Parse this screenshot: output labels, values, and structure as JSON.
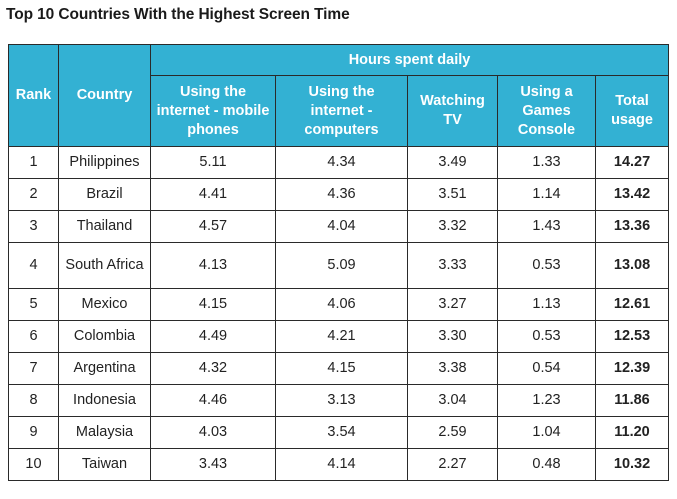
{
  "title": "Top 10 Countries With the Highest Screen Time",
  "table": {
    "group_header": "Hours spent daily",
    "columns": {
      "rank": "Rank",
      "country": "Country",
      "mobile": "Using the internet - mobile phones",
      "computers": "Using the internet - computers",
      "tv": "Watching TV",
      "console": "Using a Games Console",
      "total": "Total usage"
    },
    "rows": [
      {
        "rank": "1",
        "country": "Philippines",
        "mobile": "5.11",
        "computers": "4.34",
        "tv": "3.49",
        "console": "1.33",
        "total": "14.27"
      },
      {
        "rank": "2",
        "country": "Brazil",
        "mobile": "4.41",
        "computers": "4.36",
        "tv": "3.51",
        "console": "1.14",
        "total": "13.42"
      },
      {
        "rank": "3",
        "country": "Thailand",
        "mobile": "4.57",
        "computers": "4.04",
        "tv": "3.32",
        "console": "1.43",
        "total": "13.36"
      },
      {
        "rank": "4",
        "country": "South Africa",
        "mobile": "4.13",
        "computers": "5.09",
        "tv": "3.33",
        "console": "0.53",
        "total": "13.08"
      },
      {
        "rank": "5",
        "country": "Mexico",
        "mobile": "4.15",
        "computers": "4.06",
        "tv": "3.27",
        "console": "1.13",
        "total": "12.61"
      },
      {
        "rank": "6",
        "country": "Colombia",
        "mobile": "4.49",
        "computers": "4.21",
        "tv": "3.30",
        "console": "0.53",
        "total": "12.53"
      },
      {
        "rank": "7",
        "country": "Argentina",
        "mobile": "4.32",
        "computers": "4.15",
        "tv": "3.38",
        "console": "0.54",
        "total": "12.39"
      },
      {
        "rank": "8",
        "country": "Indonesia",
        "mobile": "4.46",
        "computers": "3.13",
        "tv": "3.04",
        "console": "1.23",
        "total": "11.86"
      },
      {
        "rank": "9",
        "country": "Malaysia",
        "mobile": "4.03",
        "computers": "3.54",
        "tv": "2.59",
        "console": "1.04",
        "total": "11.20"
      },
      {
        "rank": "10",
        "country": "Taiwan",
        "mobile": "3.43",
        "computers": "4.14",
        "tv": "2.27",
        "console": "0.48",
        "total": "10.32"
      }
    ]
  },
  "colors": {
    "header_bg": "#33b1d3",
    "header_text": "#ffffff",
    "border": "#2a2a2a",
    "body_text": "#222222"
  }
}
